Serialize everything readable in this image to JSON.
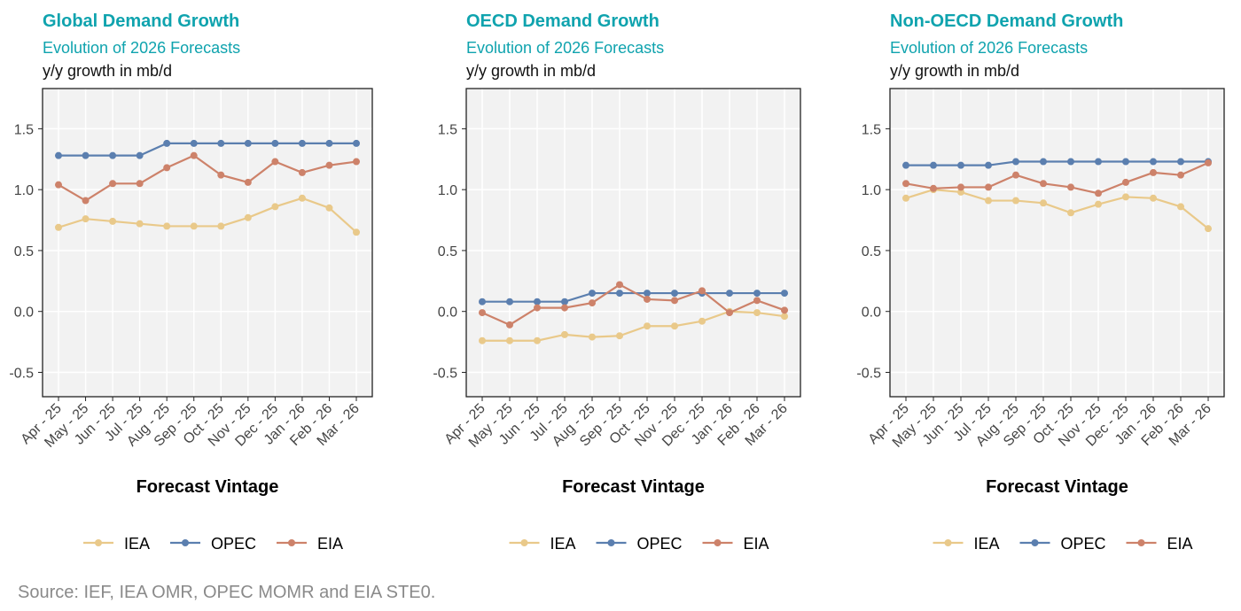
{
  "colors": {
    "title": "#0FA3AE",
    "IEA": "#E9C98A",
    "OPEC": "#5B7FAF",
    "EIA": "#CD826A",
    "panel_bg": "#F2F2F2"
  },
  "source": "Source: IEF, IEA OMR, OPEC MOMR and EIA STE0.",
  "chart_data": [
    {
      "type": "line",
      "title": "Global Demand Growth",
      "subtitle": "Evolution of 2026 Forecasts",
      "ylabel": "y/y growth in mb/d",
      "xlabel": "Forecast Vintage",
      "categories": [
        "Apr - 25",
        "May - 25",
        "Jun - 25",
        "Jul - 25",
        "Aug - 25",
        "Sep - 25",
        "Oct - 25",
        "Nov - 25",
        "Dec - 25",
        "Jan - 26",
        "Feb - 26",
        "Mar - 26"
      ],
      "yticks": [
        "-0.5",
        "0.0",
        "0.5",
        "1.0",
        "1.5"
      ],
      "ylim": [
        -0.7,
        1.83
      ],
      "grid": true,
      "legend": "bottom",
      "series": [
        {
          "name": "IEA",
          "values": [
            0.69,
            0.76,
            0.74,
            0.72,
            0.7,
            0.7,
            0.7,
            0.77,
            0.86,
            0.93,
            0.85,
            0.65
          ]
        },
        {
          "name": "OPEC",
          "values": [
            1.28,
            1.28,
            1.28,
            1.28,
            1.38,
            1.38,
            1.38,
            1.38,
            1.38,
            1.38,
            1.38,
            1.38
          ]
        },
        {
          "name": "EIA",
          "values": [
            1.04,
            0.91,
            1.05,
            1.05,
            1.18,
            1.28,
            1.12,
            1.06,
            1.23,
            1.14,
            1.2,
            1.23
          ]
        }
      ]
    },
    {
      "type": "line",
      "title": "OECD Demand Growth",
      "subtitle": "Evolution of 2026 Forecasts",
      "ylabel": "y/y growth in mb/d",
      "xlabel": "Forecast Vintage",
      "categories": [
        "Apr - 25",
        "May - 25",
        "Jun - 25",
        "Jul - 25",
        "Aug - 25",
        "Sep - 25",
        "Oct - 25",
        "Nov - 25",
        "Dec - 25",
        "Jan - 26",
        "Feb - 26",
        "Mar - 26"
      ],
      "yticks": [
        "-0.5",
        "0.0",
        "0.5",
        "1.0",
        "1.5"
      ],
      "ylim": [
        -0.7,
        1.83
      ],
      "grid": true,
      "legend": "bottom",
      "series": [
        {
          "name": "IEA",
          "values": [
            -0.24,
            -0.24,
            -0.24,
            -0.19,
            -0.21,
            -0.2,
            -0.12,
            -0.12,
            -0.08,
            0.0,
            -0.01,
            -0.04
          ]
        },
        {
          "name": "OPEC",
          "values": [
            0.08,
            0.08,
            0.08,
            0.08,
            0.15,
            0.15,
            0.15,
            0.15,
            0.15,
            0.15,
            0.15,
            0.15
          ]
        },
        {
          "name": "EIA",
          "values": [
            -0.01,
            -0.11,
            0.03,
            0.03,
            0.07,
            0.22,
            0.1,
            0.09,
            0.17,
            -0.01,
            0.09,
            0.01
          ]
        }
      ]
    },
    {
      "type": "line",
      "title": "Non-OECD Demand Growth",
      "subtitle": "Evolution of 2026 Forecasts",
      "ylabel": "y/y growth in mb/d",
      "xlabel": "Forecast Vintage",
      "categories": [
        "Apr - 25",
        "May - 25",
        "Jun - 25",
        "Jul - 25",
        "Aug - 25",
        "Sep - 25",
        "Oct - 25",
        "Nov - 25",
        "Dec - 25",
        "Jan - 26",
        "Feb - 26",
        "Mar - 26"
      ],
      "yticks": [
        "-0.5",
        "0.0",
        "0.5",
        "1.0",
        "1.5"
      ],
      "ylim": [
        -0.7,
        1.83
      ],
      "grid": true,
      "legend": "bottom",
      "series": [
        {
          "name": "IEA",
          "values": [
            0.93,
            1.0,
            0.98,
            0.91,
            0.91,
            0.89,
            0.81,
            0.88,
            0.94,
            0.93,
            0.86,
            0.68
          ]
        },
        {
          "name": "OPEC",
          "values": [
            1.2,
            1.2,
            1.2,
            1.2,
            1.23,
            1.23,
            1.23,
            1.23,
            1.23,
            1.23,
            1.23,
            1.23
          ]
        },
        {
          "name": "EIA",
          "values": [
            1.05,
            1.01,
            1.02,
            1.02,
            1.12,
            1.05,
            1.02,
            0.97,
            1.06,
            1.14,
            1.12,
            1.22
          ]
        }
      ]
    }
  ]
}
